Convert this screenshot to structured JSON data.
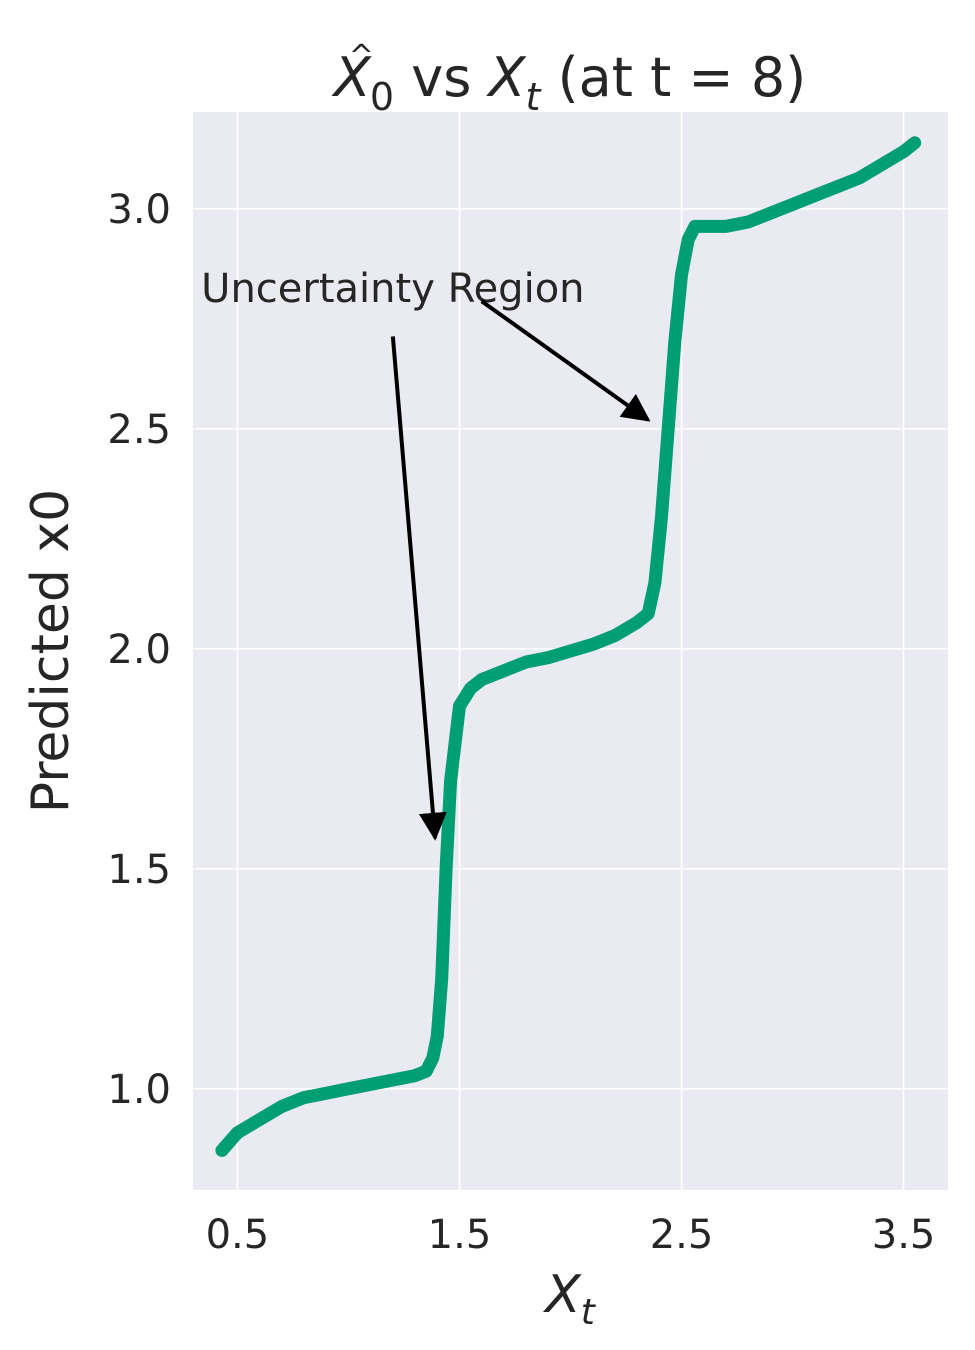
{
  "chart_data": {
    "type": "line",
    "title": {
      "parts": [
        {
          "text": "X",
          "style": "italic"
        },
        {
          "text": "^",
          "style": "hat"
        },
        {
          "text": "0",
          "style": "sub"
        },
        {
          "text": " vs ",
          "style": "normal"
        },
        {
          "text": "X",
          "style": "italic"
        },
        {
          "text": "t",
          "style": "sub-italic"
        },
        {
          "text": " (at t = 8)",
          "style": "normal"
        }
      ]
    },
    "xlabel": {
      "main": "X",
      "sub": "t"
    },
    "ylabel": "Predicted x0",
    "xlim": [
      0.3,
      3.7
    ],
    "ylim": [
      0.77,
      3.22
    ],
    "xticks": [
      0.5,
      1.5,
      2.5,
      3.5
    ],
    "xtick_labels": [
      "0.5",
      "1.5",
      "2.5",
      "3.5"
    ],
    "yticks": [
      1.0,
      1.5,
      2.0,
      2.5,
      3.0
    ],
    "ytick_labels": [
      "1.0",
      "1.5",
      "2.0",
      "2.5",
      "3.0"
    ],
    "grid": true,
    "background": "#eaeaf2",
    "grid_color": "#ffffff",
    "series": [
      {
        "color": "#009e73",
        "x": [
          0.43,
          0.5,
          0.6,
          0.7,
          0.8,
          0.9,
          1.0,
          1.1,
          1.2,
          1.3,
          1.35,
          1.38,
          1.4,
          1.42,
          1.44,
          1.46,
          1.5,
          1.55,
          1.6,
          1.7,
          1.8,
          1.9,
          2.0,
          2.1,
          2.2,
          2.3,
          2.35,
          2.38,
          2.41,
          2.44,
          2.47,
          2.5,
          2.53,
          2.56,
          2.6,
          2.65,
          2.7,
          2.8,
          2.9,
          3.0,
          3.1,
          3.2,
          3.3,
          3.4,
          3.5,
          3.55
        ],
        "y": [
          0.86,
          0.9,
          0.93,
          0.96,
          0.98,
          0.99,
          1.0,
          1.01,
          1.02,
          1.03,
          1.04,
          1.07,
          1.12,
          1.25,
          1.5,
          1.7,
          1.87,
          1.91,
          1.93,
          1.95,
          1.97,
          1.98,
          1.995,
          2.01,
          2.03,
          2.06,
          2.08,
          2.15,
          2.3,
          2.5,
          2.7,
          2.85,
          2.93,
          2.96,
          2.96,
          2.96,
          2.96,
          2.97,
          2.99,
          3.01,
          3.03,
          3.05,
          3.07,
          3.1,
          3.13,
          3.15
        ]
      }
    ],
    "annotation": {
      "text": "Uncertainty Region",
      "text_at": [
        1.2,
        2.82
      ],
      "arrows": [
        {
          "from": [
            1.6,
            2.79
          ],
          "to": [
            2.35,
            2.52
          ]
        },
        {
          "from": [
            1.2,
            2.71
          ],
          "to": [
            1.39,
            1.57
          ]
        }
      ]
    }
  }
}
